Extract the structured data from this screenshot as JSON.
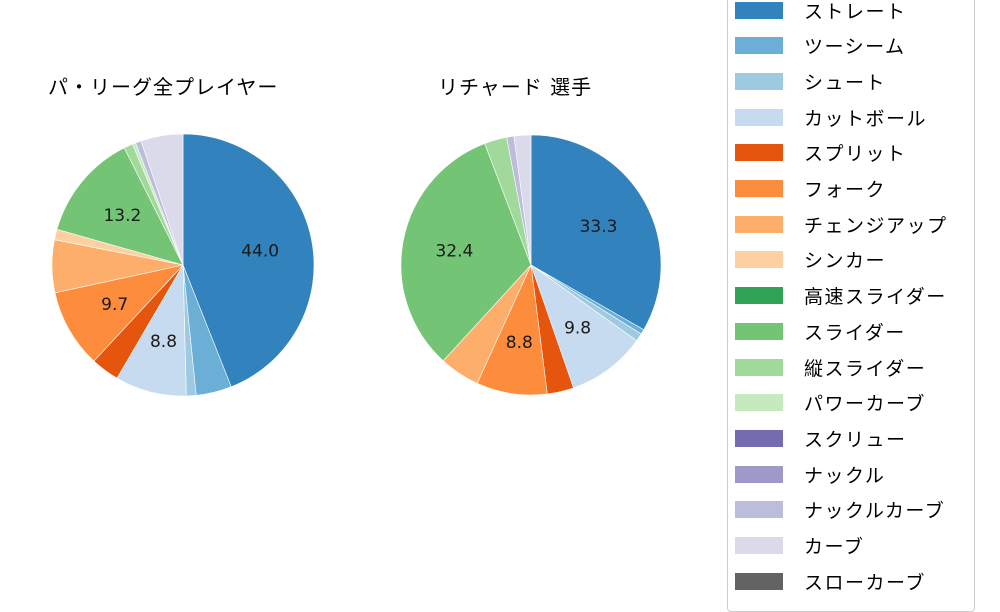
{
  "chart_data": [
    {
      "type": "pie",
      "title": "パ・リーグ全プレイヤー",
      "start_angle_deg": 90,
      "direction": "clockwise",
      "categories": [
        "ストレート",
        "ツーシーム",
        "シュート",
        "カットボール",
        "スプリット",
        "フォーク",
        "チェンジアップ",
        "シンカー",
        "スライダー",
        "縦スライダー",
        "パワーカーブ",
        "ナックルカーブ",
        "カーブ"
      ],
      "values": [
        44.0,
        4.4,
        1.2,
        8.8,
        3.5,
        9.7,
        6.5,
        1.3,
        13.2,
        1.1,
        0.4,
        0.7,
        5.2
      ],
      "data_labels": {
        "ストレート": "44.0",
        "カットボール": "8.8",
        "フォーク": "9.7",
        "スライダー": "13.2"
      },
      "center": [
        183,
        265
      ],
      "radius": 131
    },
    {
      "type": "pie",
      "title": "リチャード 選手",
      "start_angle_deg": 90,
      "direction": "clockwise",
      "categories": [
        "ストレート",
        "ツーシーム",
        "シュート",
        "カットボール",
        "スプリット",
        "フォーク",
        "チェンジアップ",
        "スライダー",
        "縦スライダー",
        "ナックルカーブ",
        "カーブ"
      ],
      "values": [
        33.3,
        0.6,
        1.0,
        9.8,
        3.3,
        8.8,
        5.0,
        32.4,
        2.8,
        0.9,
        2.1
      ],
      "data_labels": {
        "ストレート": "33.3",
        "カットボール": "9.8",
        "フォーク": "8.8",
        "スライダー": "32.4"
      },
      "center": [
        531,
        265
      ],
      "radius": 130
    }
  ],
  "legend": {
    "position": "right",
    "items": [
      {
        "label": "ストレート",
        "color": "#3182bd"
      },
      {
        "label": "ツーシーム",
        "color": "#6baed6"
      },
      {
        "label": "シュート",
        "color": "#9ecae1"
      },
      {
        "label": "カットボール",
        "color": "#c6dbef"
      },
      {
        "label": "スプリット",
        "color": "#e6550d"
      },
      {
        "label": "フォーク",
        "color": "#fd8d3c"
      },
      {
        "label": "チェンジアップ",
        "color": "#fdae6b"
      },
      {
        "label": "シンカー",
        "color": "#fdd0a2"
      },
      {
        "label": "高速スライダー",
        "color": "#31a354"
      },
      {
        "label": "スライダー",
        "color": "#74c476"
      },
      {
        "label": "縦スライダー",
        "color": "#a1d99b"
      },
      {
        "label": "パワーカーブ",
        "color": "#c7e9c0"
      },
      {
        "label": "スクリュー",
        "color": "#756bb1"
      },
      {
        "label": "ナックル",
        "color": "#9e9ac8"
      },
      {
        "label": "ナックルカーブ",
        "color": "#bcbddc"
      },
      {
        "label": "カーブ",
        "color": "#dadaeb"
      },
      {
        "label": "スローカーブ",
        "color": "#636363"
      }
    ]
  }
}
